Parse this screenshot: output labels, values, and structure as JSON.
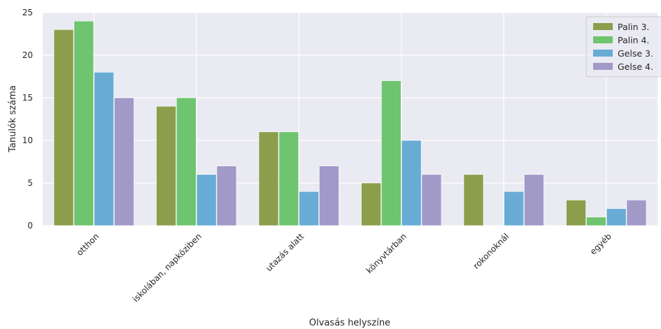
{
  "chart_data": {
    "type": "bar",
    "title": "",
    "xlabel": "Olvasás helyszíne",
    "ylabel": "Tanulók száma",
    "ylim": [
      0,
      25
    ],
    "yticks": [
      0,
      5,
      10,
      15,
      20,
      25
    ],
    "grid": true,
    "legend_position": "top-right",
    "categories": [
      "otthon",
      "iskolában, napköziben",
      "utazás alatt",
      "könyvtárban",
      "rokonoknál",
      "egyéb"
    ],
    "series": [
      {
        "name": "Palin 3.",
        "color": "#8c9e4b",
        "values": [
          23,
          14,
          11,
          5,
          6,
          3
        ]
      },
      {
        "name": "Palin 4.",
        "color": "#6fc46f",
        "values": [
          24,
          15,
          11,
          17,
          0,
          1
        ]
      },
      {
        "name": "Gelse 3.",
        "color": "#68acd6",
        "values": [
          18,
          6,
          4,
          10,
          4,
          2
        ]
      },
      {
        "name": "Gelse 4.",
        "color": "#a199c8",
        "values": [
          15,
          7,
          7,
          6,
          6,
          3
        ]
      }
    ],
    "background_color": "#eaeaf2",
    "grid_color": "#ffffff"
  }
}
